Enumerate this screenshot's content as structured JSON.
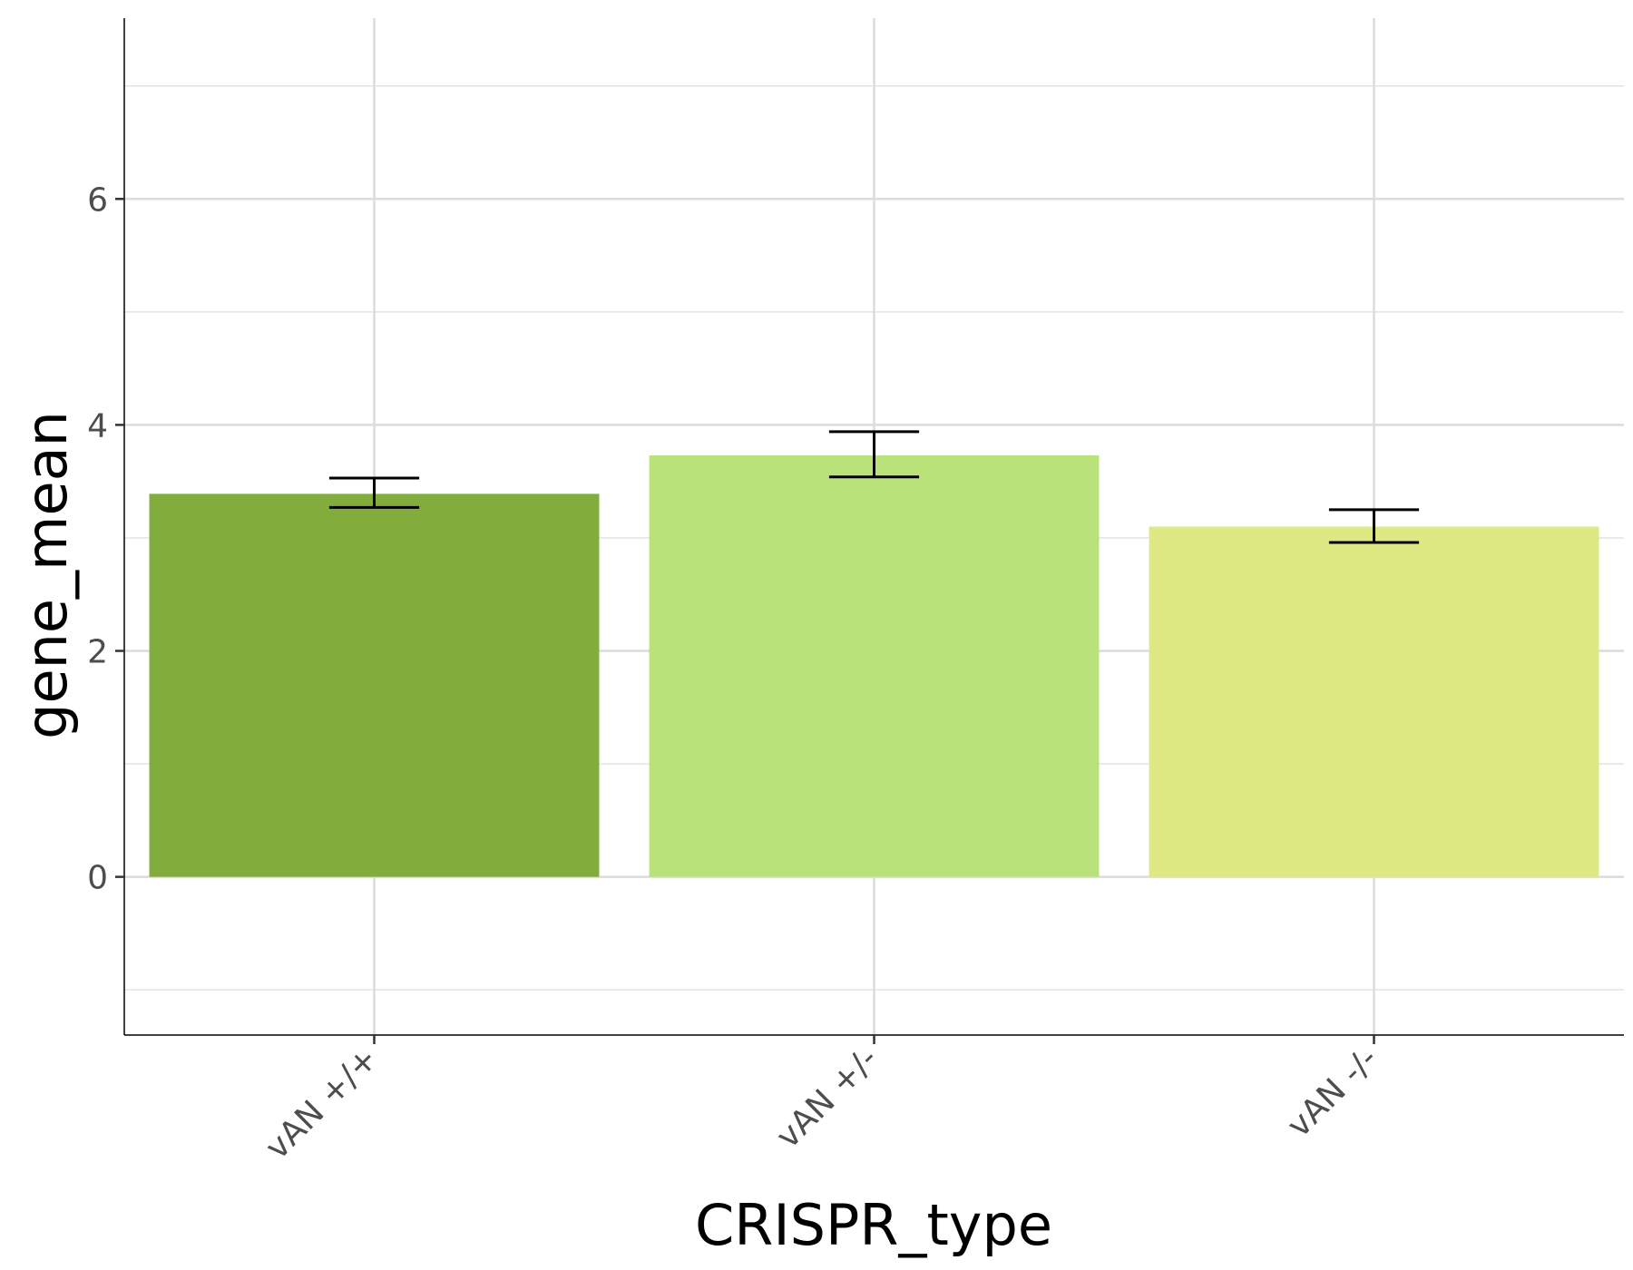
{
  "chart_data": {
    "type": "bar",
    "xlabel": "CRISPR_type",
    "ylabel": "gene_mean",
    "categories": [
      "vAN +/+",
      "vAN +/-",
      "vAN -/-"
    ],
    "values": [
      3.39,
      3.73,
      3.1
    ],
    "error_low": [
      3.27,
      3.54,
      2.96
    ],
    "error_high": [
      3.53,
      3.94,
      3.25
    ],
    "bar_colors": [
      "#82ad3c",
      "#bae27a",
      "#dfe983"
    ],
    "ylim": [
      -1.4,
      7.6
    ],
    "y_ticks": [
      0,
      2,
      4,
      6
    ],
    "y_minor_ticks": [
      -1,
      1,
      3,
      5,
      7
    ],
    "grid": true,
    "legend": "none"
  }
}
